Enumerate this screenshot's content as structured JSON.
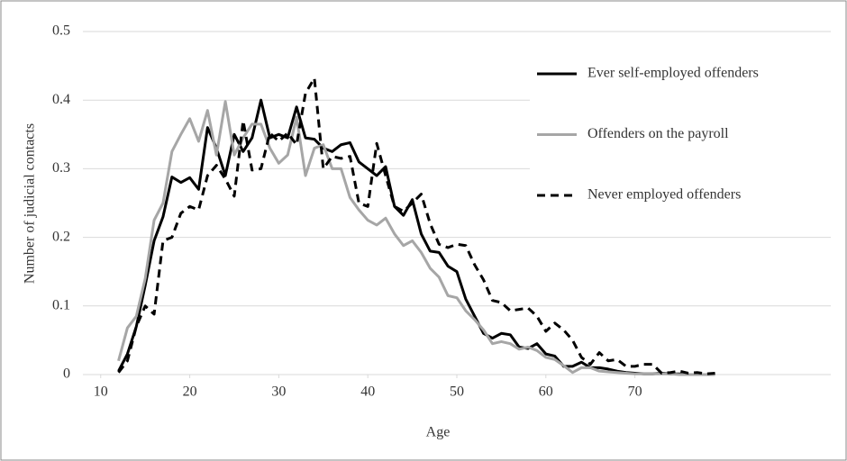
{
  "chart_data": {
    "type": "line",
    "x_label": "Age",
    "y_label": "Number of judicial contacts",
    "xlim": [
      8,
      92
    ],
    "xticks": [
      10,
      20,
      30,
      40,
      50,
      60,
      70
    ],
    "ylim": [
      0,
      0.5
    ],
    "yticks": [
      0,
      0.1,
      0.2,
      0.3,
      0.4,
      0.5
    ],
    "grid": true,
    "legend": "right",
    "x": [
      12,
      13,
      14,
      15,
      16,
      17,
      18,
      19,
      20,
      21,
      22,
      23,
      24,
      25,
      26,
      27,
      28,
      29,
      30,
      31,
      32,
      33,
      34,
      35,
      36,
      37,
      38,
      39,
      40,
      41,
      42,
      43,
      44,
      45,
      46,
      47,
      48,
      49,
      50,
      51,
      52,
      53,
      54,
      55,
      56,
      57,
      58,
      59,
      60,
      61,
      62,
      63,
      64,
      65,
      66,
      67,
      68,
      69,
      70,
      71,
      72,
      73,
      74,
      75,
      76,
      77,
      78,
      79
    ],
    "series": [
      {
        "name": "Ever self-employed offenders",
        "color": "#000000",
        "dashed": false,
        "values": [
          0.005,
          0.03,
          0.07,
          0.13,
          0.195,
          0.23,
          0.288,
          0.28,
          0.287,
          0.27,
          0.36,
          0.33,
          0.29,
          0.35,
          0.325,
          0.345,
          0.4,
          0.345,
          0.35,
          0.345,
          0.39,
          0.345,
          0.343,
          0.33,
          0.325,
          0.335,
          0.338,
          0.31,
          0.3,
          0.29,
          0.303,
          0.245,
          0.232,
          0.255,
          0.205,
          0.18,
          0.178,
          0.158,
          0.15,
          0.11,
          0.085,
          0.06,
          0.053,
          0.06,
          0.058,
          0.04,
          0.038,
          0.045,
          0.03,
          0.027,
          0.012,
          0.012,
          0.018,
          0.01,
          0.01,
          0.008,
          0.005,
          0.003,
          0.002,
          0.001,
          0.001,
          0.002,
          0.001,
          0.001,
          0,
          0,
          0,
          0.001
        ]
      },
      {
        "name": "Offenders on the payroll",
        "color": "#a6a6a6",
        "dashed": false,
        "values": [
          0.02,
          0.068,
          0.085,
          0.14,
          0.225,
          0.25,
          0.325,
          0.35,
          0.373,
          0.34,
          0.385,
          0.32,
          0.398,
          0.32,
          0.345,
          0.365,
          0.365,
          0.33,
          0.308,
          0.32,
          0.375,
          0.29,
          0.33,
          0.335,
          0.3,
          0.3,
          0.258,
          0.24,
          0.225,
          0.218,
          0.228,
          0.205,
          0.188,
          0.195,
          0.178,
          0.155,
          0.142,
          0.115,
          0.112,
          0.093,
          0.08,
          0.065,
          0.045,
          0.048,
          0.045,
          0.037,
          0.04,
          0.035,
          0.025,
          0.022,
          0.013,
          0.003,
          0.01,
          0.01,
          0.005,
          0.004,
          0.003,
          0.002,
          0.001,
          0.001,
          0.001,
          0.001,
          0.001,
          0,
          0,
          0,
          0,
          0
        ]
      },
      {
        "name": "Never employed offenders",
        "color": "#000000",
        "dashed": true,
        "values": [
          0.003,
          0.02,
          0.07,
          0.1,
          0.088,
          0.195,
          0.2,
          0.235,
          0.245,
          0.24,
          0.29,
          0.305,
          0.285,
          0.26,
          0.37,
          0.298,
          0.3,
          0.352,
          0.34,
          0.352,
          0.335,
          0.41,
          0.432,
          0.3,
          0.318,
          0.315,
          0.318,
          0.25,
          0.245,
          0.337,
          0.29,
          0.245,
          0.238,
          0.25,
          0.263,
          0.22,
          0.19,
          0.185,
          0.19,
          0.188,
          0.16,
          0.138,
          0.108,
          0.105,
          0.093,
          0.095,
          0.097,
          0.085,
          0.063,
          0.075,
          0.065,
          0.05,
          0.025,
          0.015,
          0.032,
          0.02,
          0.022,
          0.012,
          0.012,
          0.015,
          0.015,
          0.002,
          0.003,
          0.005,
          0.002,
          0.003,
          0.001,
          0.002
        ]
      }
    ]
  }
}
